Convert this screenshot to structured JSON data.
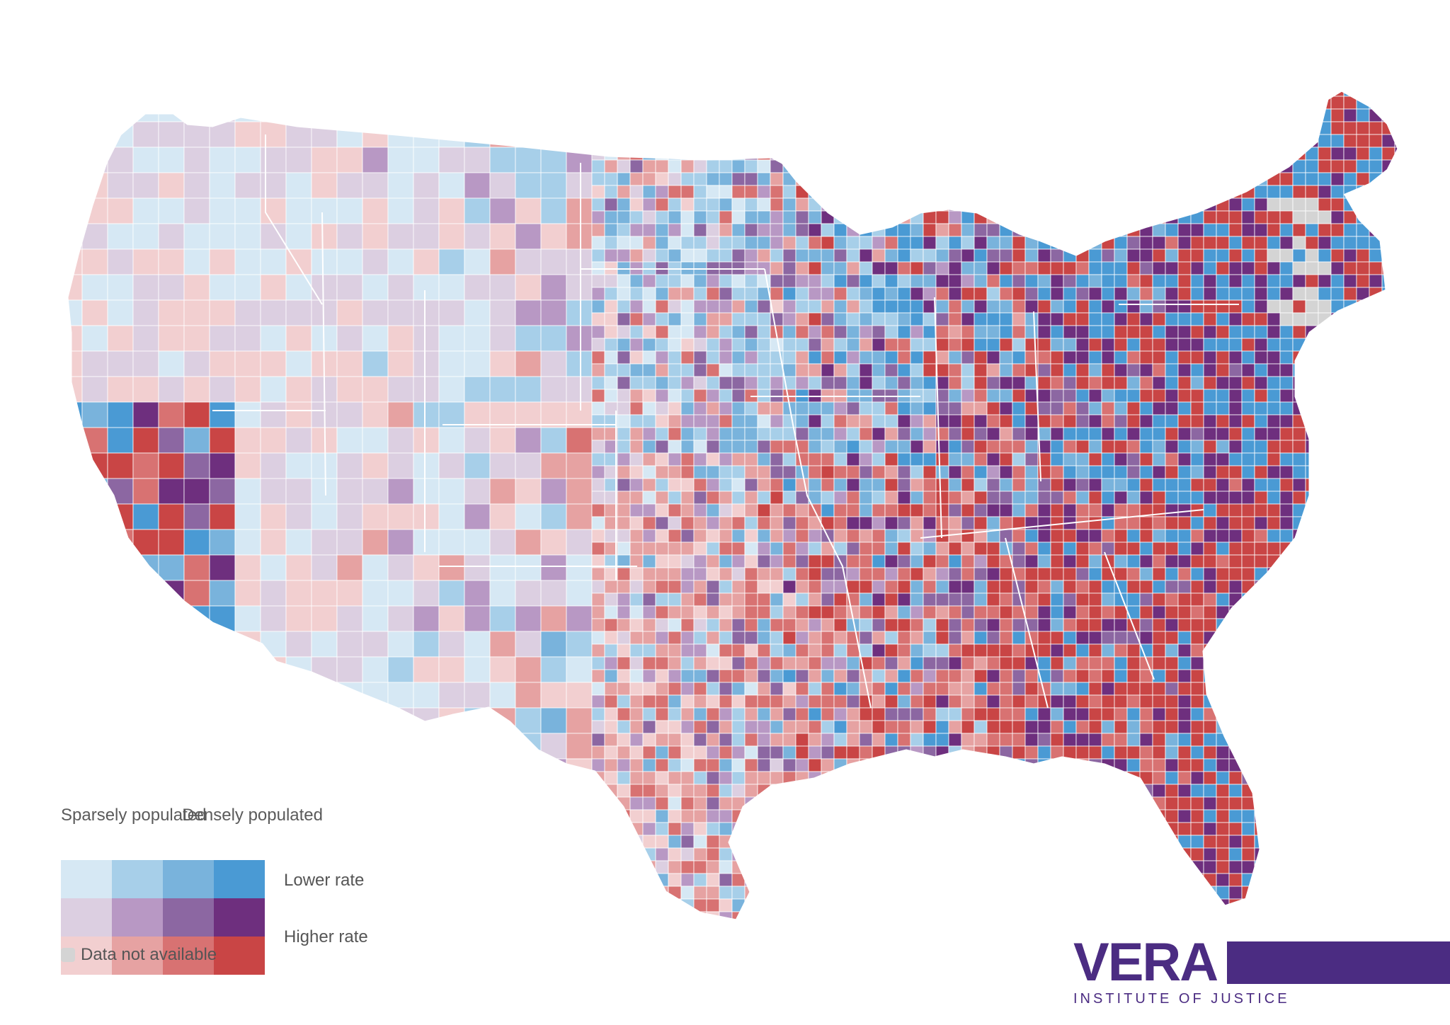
{
  "legend": {
    "sparse_label": "Sparsely populated",
    "dense_label": "Densely populated",
    "lower_label": "Lower rate",
    "higher_label": "Higher rate",
    "na_label": "Data not available",
    "colors": [
      [
        "#d6e8f4",
        "#a7cfe9",
        "#79b3dc",
        "#4a9ad4"
      ],
      [
        "#dccfe1",
        "#b898c4",
        "#8c67a2",
        "#6e2f7e"
      ],
      [
        "#f2cfd0",
        "#e6a2a2",
        "#d87272",
        "#c94545"
      ]
    ],
    "na_color": "#d4d4d4"
  },
  "logo": {
    "word": "VERA",
    "subtitle": "INSTITUTE OF JUSTICE",
    "color": "#4b2c82"
  }
}
